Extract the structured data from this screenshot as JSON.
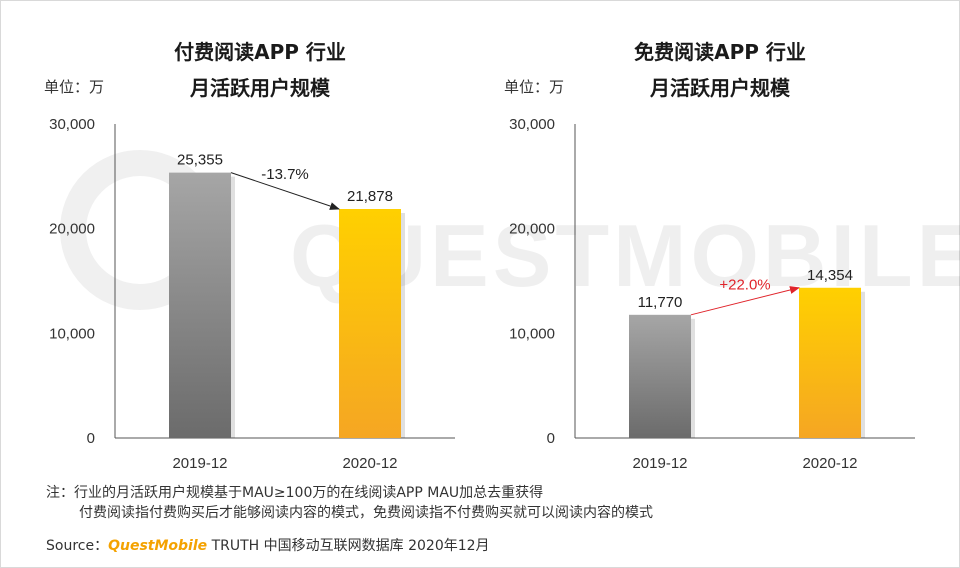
{
  "notes": {
    "line1": "注：行业的月活跃用户规模基于MAU≥100万的在线阅读APP MAU加总去重获得",
    "line2": "付费阅读指付费购买后才能够阅读内容的模式，免费阅读指不付费购买就可以阅读内容的模式",
    "source_label": "Source：",
    "source_brand": "QuestMobile",
    "source_rest": " TRUTH 中国移动互联网数据库 2020年12月"
  },
  "watermark": "QUESTMOBILE",
  "chart_data": [
    {
      "type": "bar",
      "title_line1": "付费阅读APP 行业",
      "title_line2": "月活跃用户规模",
      "unit_label": "单位：万",
      "categories": [
        "2019-12",
        "2020-12"
      ],
      "values": [
        25355,
        21878
      ],
      "value_labels": [
        "25,355",
        "21,878"
      ],
      "bar_colors": [
        "#8c8c8c",
        "#f7b21c"
      ],
      "ylim": [
        0,
        30000
      ],
      "yticks": [
        0,
        10000,
        20000,
        30000
      ],
      "ytick_labels": [
        "0",
        "10,000",
        "20,000",
        "30,000"
      ],
      "change_label": "-13.7%",
      "change_color": "#222222",
      "grid": false
    },
    {
      "type": "bar",
      "title_line1": "免费阅读APP 行业",
      "title_line2": "月活跃用户规模",
      "unit_label": "单位：万",
      "categories": [
        "2019-12",
        "2020-12"
      ],
      "values": [
        11770,
        14354
      ],
      "value_labels": [
        "11,770",
        "14,354"
      ],
      "bar_colors": [
        "#8c8c8c",
        "#f7b21c"
      ],
      "ylim": [
        0,
        30000
      ],
      "yticks": [
        0,
        10000,
        20000,
        30000
      ],
      "ytick_labels": [
        "0",
        "10,000",
        "20,000",
        "30,000"
      ],
      "change_label": "+22.0%",
      "change_color": "#e0242b",
      "grid": false
    }
  ]
}
